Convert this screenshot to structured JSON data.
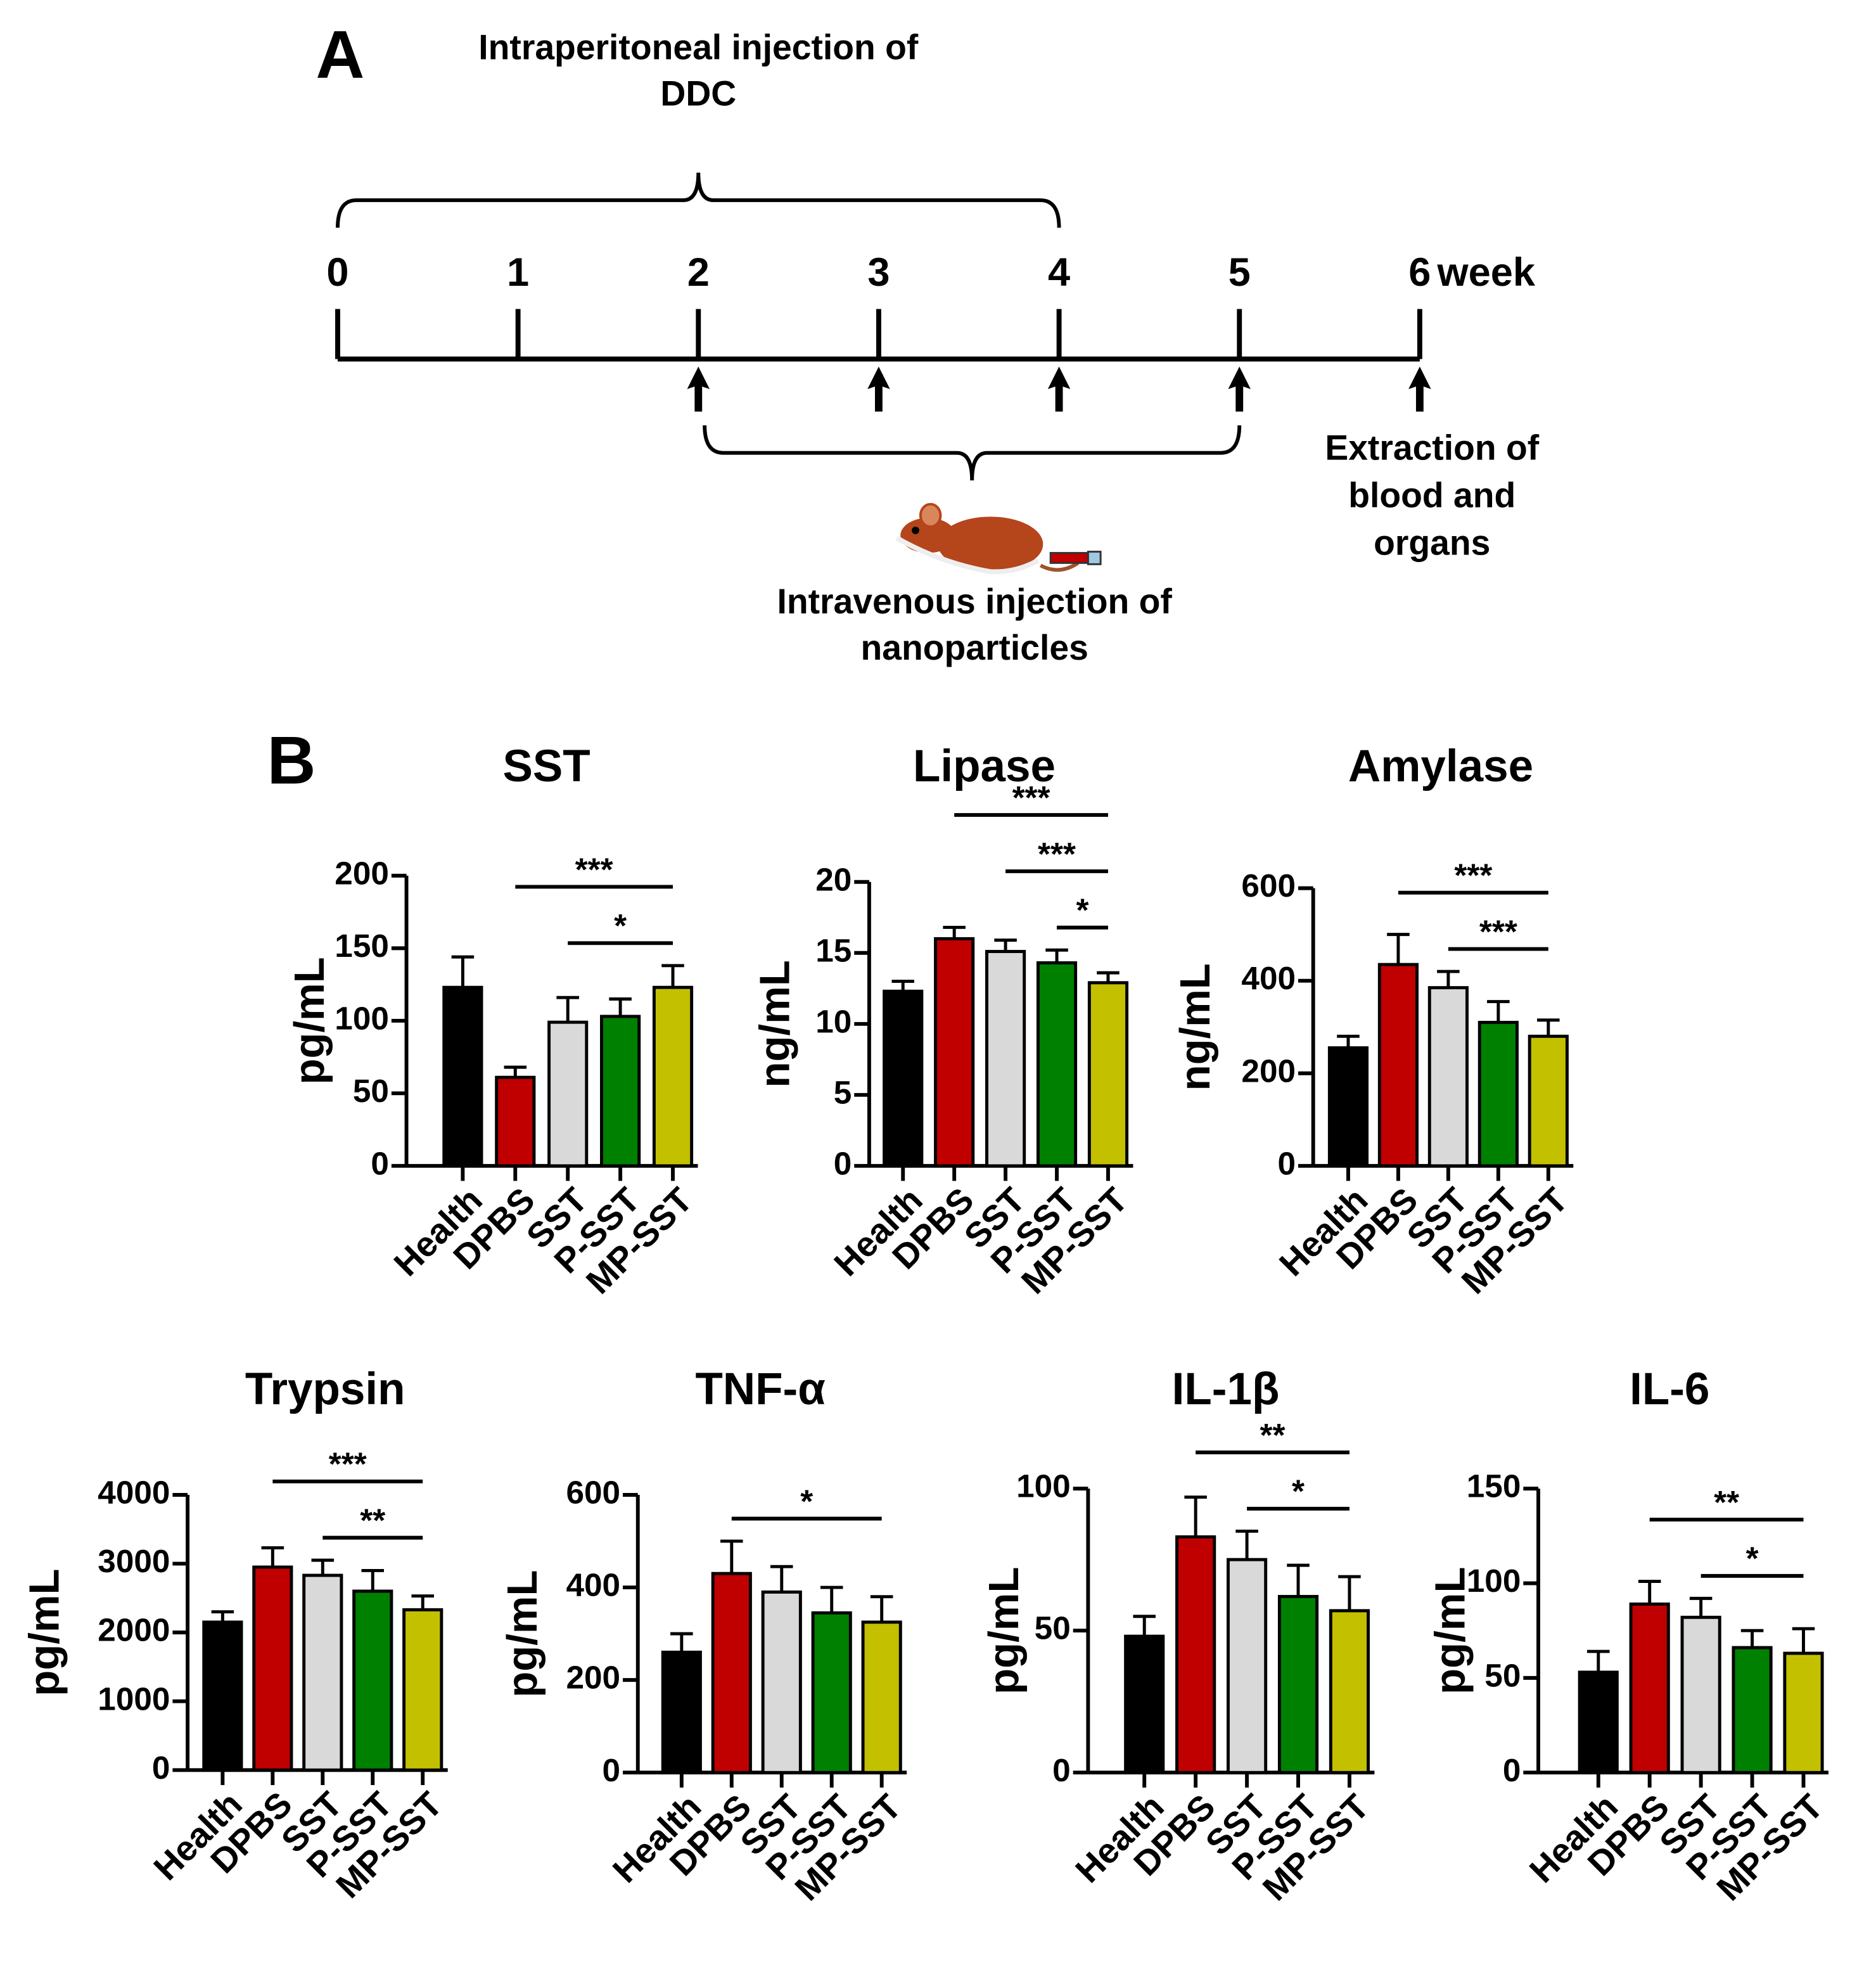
{
  "panel_a": "A",
  "panel_b": "B",
  "timeline": {
    "weeks": [
      0,
      1,
      2,
      3,
      4,
      5,
      6
    ],
    "unit": "week",
    "ddc": {
      "lines": [
        "Intraperitoneal injection of",
        "DDC"
      ],
      "from": 0,
      "to": 4
    },
    "arrows": [
      2,
      3,
      4,
      5,
      6
    ],
    "nano": {
      "lines": [
        "Intravenous injection of",
        "nanoparticles"
      ],
      "from": 2,
      "to": 5
    },
    "extraction": [
      "Extraction of",
      "blood and",
      "organs"
    ]
  },
  "chart_data": [
    {
      "type": "bar",
      "title": "SST",
      "ylabel": "pg/mL",
      "categories": [
        "Health",
        "DPBS",
        "SST",
        "P-SST",
        "MP-SST"
      ],
      "values": [
        123,
        61,
        99,
        103,
        123
      ],
      "errors": [
        21,
        7,
        17,
        12,
        15
      ],
      "colors": [
        "#000000",
        "#c00000",
        "#d9d9d9",
        "#008000",
        "#c3c000"
      ],
      "ylim": [
        0,
        200
      ],
      "yticks": [
        0,
        50,
        100,
        150,
        200
      ],
      "comparisons": [
        {
          "pair": [
            1,
            4
          ],
          "label": "***"
        },
        {
          "pair": [
            2,
            4
          ],
          "label": "*"
        }
      ]
    },
    {
      "type": "bar",
      "title": "Lipase",
      "ylabel": "ng/mL",
      "categories": [
        "Health",
        "DPBS",
        "SST",
        "P-SST",
        "MP-SST"
      ],
      "values": [
        12.3,
        16,
        15.1,
        14.3,
        12.9
      ],
      "errors": [
        0.7,
        0.8,
        0.8,
        0.9,
        0.7
      ],
      "colors": [
        "#000000",
        "#c00000",
        "#d9d9d9",
        "#008000",
        "#c3c000"
      ],
      "ylim": [
        0,
        20
      ],
      "yticks": [
        0,
        5,
        10,
        15,
        20
      ],
      "comparisons": [
        {
          "pair": [
            1,
            4
          ],
          "label": "***"
        },
        {
          "pair": [
            2,
            4
          ],
          "label": "***"
        },
        {
          "pair": [
            3,
            4
          ],
          "label": "*"
        }
      ]
    },
    {
      "type": "bar",
      "title": "Amylase",
      "ylabel": "ng/mL",
      "categories": [
        "Health",
        "DPBS",
        "SST",
        "P-SST",
        "MP-SST"
      ],
      "values": [
        255,
        435,
        385,
        310,
        280
      ],
      "errors": [
        25,
        65,
        35,
        45,
        35
      ],
      "colors": [
        "#000000",
        "#c00000",
        "#d9d9d9",
        "#008000",
        "#c3c000"
      ],
      "ylim": [
        0,
        600
      ],
      "yticks": [
        0,
        200,
        400,
        600
      ],
      "comparisons": [
        {
          "pair": [
            1,
            4
          ],
          "label": "***"
        },
        {
          "pair": [
            2,
            4
          ],
          "label": "***"
        }
      ]
    },
    {
      "type": "bar",
      "title": "Trypsin",
      "ylabel": "pg/mL",
      "categories": [
        "Health",
        "DPBS",
        "SST",
        "P-SST",
        "MP-SST"
      ],
      "values": [
        2150,
        2950,
        2830,
        2600,
        2330
      ],
      "errors": [
        150,
        280,
        220,
        300,
        200
      ],
      "colors": [
        "#000000",
        "#c00000",
        "#d9d9d9",
        "#008000",
        "#c3c000"
      ],
      "ylim": [
        0,
        4000
      ],
      "yticks": [
        0,
        1000,
        2000,
        3000,
        4000
      ],
      "comparisons": [
        {
          "pair": [
            1,
            4
          ],
          "label": "***"
        },
        {
          "pair": [
            2,
            4
          ],
          "label": "**"
        }
      ]
    },
    {
      "type": "bar",
      "title": "TNF-α",
      "ylabel": "pg/mL",
      "categories": [
        "Health",
        "DPBS",
        "SST",
        "P-SST",
        "MP-SST"
      ],
      "values": [
        260,
        430,
        390,
        345,
        325
      ],
      "errors": [
        40,
        70,
        55,
        55,
        55
      ],
      "colors": [
        "#000000",
        "#c00000",
        "#d9d9d9",
        "#008000",
        "#c3c000"
      ],
      "ylim": [
        0,
        600
      ],
      "yticks": [
        0,
        200,
        400,
        600
      ],
      "comparisons": [
        {
          "pair": [
            1,
            4
          ],
          "label": "*"
        }
      ]
    },
    {
      "type": "bar",
      "title": "IL-1β",
      "ylabel": "pg/mL",
      "categories": [
        "Health",
        "DPBS",
        "SST",
        "P-SST",
        "MP-SST"
      ],
      "values": [
        48,
        83,
        75,
        62,
        57
      ],
      "errors": [
        7,
        14,
        10,
        11,
        12
      ],
      "colors": [
        "#000000",
        "#c00000",
        "#d9d9d9",
        "#008000",
        "#c3c000"
      ],
      "ylim": [
        0,
        100
      ],
      "yticks": [
        0,
        50,
        100
      ],
      "comparisons": [
        {
          "pair": [
            1,
            4
          ],
          "label": "**"
        },
        {
          "pair": [
            2,
            4
          ],
          "label": "*"
        }
      ]
    },
    {
      "type": "bar",
      "title": "IL-6",
      "ylabel": "pg/mL",
      "categories": [
        "Health",
        "DPBS",
        "SST",
        "P-SST",
        "MP-SST"
      ],
      "values": [
        53,
        89,
        82,
        66,
        63
      ],
      "errors": [
        11,
        12,
        10,
        9,
        13
      ],
      "colors": [
        "#000000",
        "#c00000",
        "#d9d9d9",
        "#008000",
        "#c3c000"
      ],
      "ylim": [
        0,
        150
      ],
      "yticks": [
        0,
        50,
        100,
        150
      ],
      "comparisons": [
        {
          "pair": [
            1,
            4
          ],
          "label": "**"
        },
        {
          "pair": [
            2,
            4
          ],
          "label": "*"
        }
      ]
    }
  ]
}
